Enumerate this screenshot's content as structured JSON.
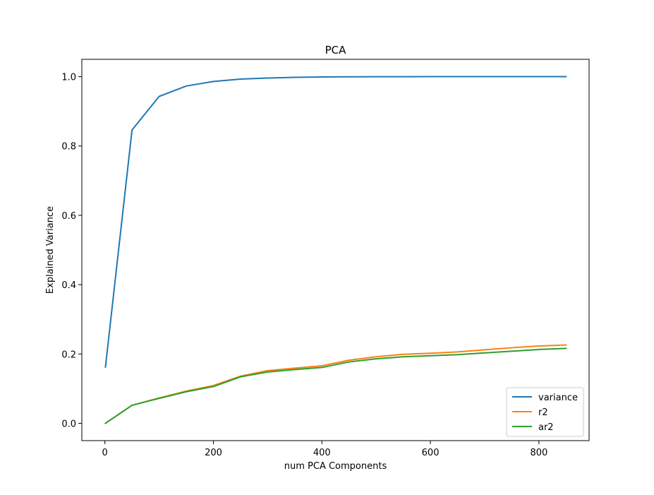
{
  "chart_data": {
    "type": "line",
    "title": "PCA",
    "xlabel": "num PCA Components",
    "ylabel": "Explained Variance",
    "xlim": [
      -42.5,
      892.5
    ],
    "ylim": [
      -0.05,
      1.05
    ],
    "xticks": [
      0,
      200,
      400,
      600,
      800
    ],
    "yticks": [
      0.0,
      0.2,
      0.4,
      0.6,
      0.8,
      1.0
    ],
    "xtick_labels": [
      "0",
      "200",
      "400",
      "600",
      "800"
    ],
    "ytick_labels": [
      "0.0",
      "0.2",
      "0.4",
      "0.6",
      "0.8",
      "1.0"
    ],
    "grid": false,
    "legend_position": "lower-right",
    "x": [
      1,
      50,
      100,
      150,
      200,
      250,
      300,
      350,
      400,
      450,
      500,
      550,
      600,
      650,
      700,
      750,
      800,
      850
    ],
    "series": [
      {
        "name": "variance",
        "color": "#1f77b4",
        "values": [
          0.162,
          0.846,
          0.943,
          0.973,
          0.986,
          0.993,
          0.996,
          0.998,
          0.999,
          0.9995,
          0.9998,
          0.9999,
          1.0,
          1.0,
          1.0,
          1.0,
          1.0,
          1.0
        ]
      },
      {
        "name": "r2",
        "color": "#ff7f0e",
        "values": [
          0.0,
          0.052,
          0.073,
          0.093,
          0.109,
          0.136,
          0.152,
          0.159,
          0.166,
          0.182,
          0.192,
          0.199,
          0.202,
          0.206,
          0.212,
          0.218,
          0.223,
          0.226
        ]
      },
      {
        "name": "ar2",
        "color": "#2ca02c",
        "values": [
          0.0,
          0.052,
          0.072,
          0.091,
          0.106,
          0.134,
          0.148,
          0.155,
          0.161,
          0.177,
          0.186,
          0.192,
          0.195,
          0.198,
          0.203,
          0.208,
          0.213,
          0.216
        ]
      }
    ]
  }
}
